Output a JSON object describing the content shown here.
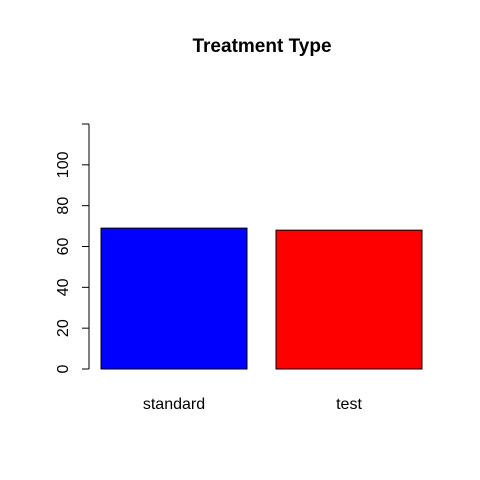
{
  "chart_data": {
    "type": "bar",
    "title": "Treatment Type",
    "xlabel": "",
    "ylabel": "",
    "categories": [
      "standard",
      "test"
    ],
    "values": [
      69,
      68
    ],
    "colors": [
      "#0000FF",
      "#FF0000"
    ],
    "ylim": [
      0,
      120
    ],
    "yticks": [
      0,
      20,
      40,
      60,
      80,
      100
    ],
    "ytick_labels": [
      "0",
      "20",
      "40",
      "60",
      "80",
      "100"
    ],
    "grid": false,
    "legend": "none"
  }
}
